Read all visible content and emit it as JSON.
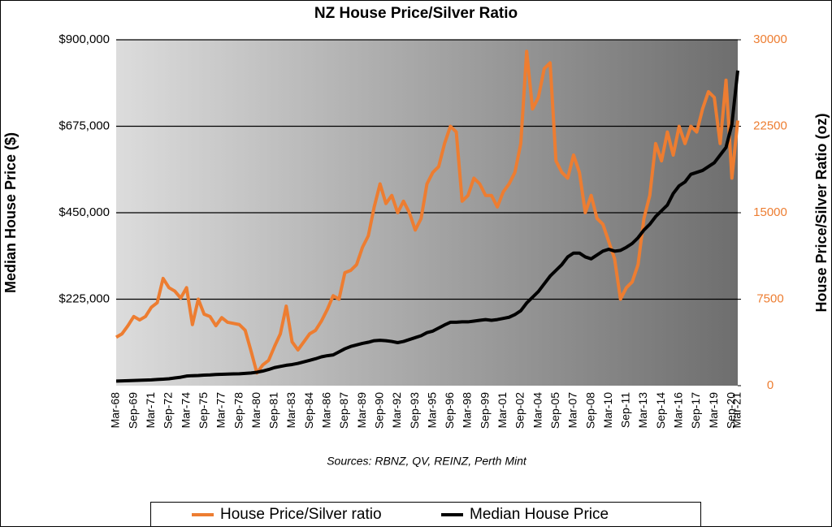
{
  "chart_data": {
    "type": "line",
    "title": "NZ House Price/Silver Ratio",
    "subtitle": "Sources: RBNZ, QV, REINZ, Perth Mint",
    "y_label": "Median House Price ($)",
    "y2_label": "House Price/Silver Ratio (oz)",
    "categories": [
      "Mar-68",
      null,
      null,
      "Sep-69",
      null,
      null,
      "Mar-71",
      null,
      null,
      "Sep-72",
      null,
      null,
      "Mar-74",
      null,
      null,
      "Sep-75",
      null,
      null,
      "Mar-77",
      null,
      null,
      "Sep-78",
      null,
      null,
      "Mar-80",
      null,
      null,
      "Sep-81",
      null,
      null,
      "Mar-83",
      null,
      null,
      "Sep-84",
      null,
      null,
      "Mar-86",
      null,
      null,
      "Sep-87",
      null,
      null,
      "Mar-89",
      null,
      null,
      "Sep-90",
      null,
      null,
      "Mar-92",
      null,
      null,
      "Sep-93",
      null,
      null,
      "Mar-95",
      null,
      null,
      "Sep-96",
      null,
      null,
      "Mar-98",
      null,
      null,
      "Sep-99",
      null,
      null,
      "Mar-01",
      null,
      null,
      "Sep-02",
      null,
      null,
      "Mar-04",
      null,
      null,
      "Sep-05",
      null,
      null,
      "Mar-07",
      null,
      null,
      "Sep-08",
      null,
      null,
      "Mar-10",
      null,
      null,
      "Sep-11",
      null,
      null,
      "Mar-13",
      null,
      null,
      "Sep-14",
      null,
      null,
      "Mar-16",
      null,
      null,
      "Sep-17",
      null,
      null,
      "Mar-19",
      null,
      null,
      "Sep-20",
      "Mar-21"
    ],
    "series": [
      {
        "name": "House Price/Silver ratio",
        "color": "#ed7d31",
        "axis": "y2",
        "values": [
          4200,
          4500,
          5200,
          6000,
          5700,
          6000,
          6800,
          7200,
          9300,
          8500,
          8200,
          7600,
          8500,
          5300,
          7500,
          6200,
          6000,
          5200,
          5900,
          5500,
          5400,
          5300,
          4800,
          3000,
          1100,
          1800,
          2200,
          3400,
          4500,
          6900,
          3800,
          3100,
          3800,
          4500,
          4800,
          5600,
          6600,
          7800,
          7500,
          9800,
          10000,
          10500,
          12000,
          13000,
          15500,
          17500,
          15800,
          16500,
          15000,
          16000,
          15000,
          13500,
          14500,
          17500,
          18500,
          19000,
          21000,
          22500,
          22000,
          16000,
          16500,
          18000,
          17500,
          16500,
          16500,
          15500,
          16800,
          17500,
          18500,
          21000,
          29000,
          24000,
          25000,
          27500,
          28000,
          19500,
          18500,
          18000,
          20000,
          18500,
          15000,
          16500,
          14500,
          14000,
          12500,
          11000,
          7500,
          8500,
          9000,
          10500,
          14500,
          16500,
          21000,
          19500,
          22000,
          20000,
          22500,
          21000,
          22500,
          22000,
          24000,
          25500,
          25000,
          21000,
          26500,
          18000,
          23000
        ]
      },
      {
        "name": "Median House Price",
        "color": "#000000",
        "values": [
          12000,
          12500,
          13000,
          13500,
          14000,
          14500,
          15000,
          16000,
          17000,
          18000,
          20000,
          22000,
          25000,
          26000,
          26500,
          27500,
          28000,
          29000,
          29500,
          30000,
          30500,
          31000,
          32000,
          33000,
          35000,
          38000,
          42000,
          47000,
          50000,
          53000,
          55000,
          58000,
          62000,
          66000,
          70000,
          75000,
          78000,
          80000,
          88000,
          96000,
          102000,
          106000,
          110000,
          113000,
          117000,
          118000,
          117000,
          115000,
          112000,
          115000,
          120000,
          125000,
          130000,
          138000,
          142000,
          150000,
          158000,
          165000,
          165000,
          166000,
          166000,
          168000,
          170000,
          172000,
          170000,
          172000,
          175000,
          178000,
          185000,
          195000,
          215000,
          230000,
          245000,
          265000,
          285000,
          300000,
          315000,
          335000,
          345000,
          345000,
          335000,
          330000,
          340000,
          350000,
          355000,
          350000,
          352000,
          360000,
          370000,
          385000,
          405000,
          420000,
          440000,
          455000,
          470000,
          500000,
          520000,
          530000,
          550000,
          555000,
          560000,
          570000,
          580000,
          600000,
          620000,
          680000,
          820000
        ]
      }
    ],
    "ylim": [
      0,
      900000
    ],
    "yticks": [
      {
        "value": 225000,
        "label": "$225,000"
      },
      {
        "value": 450000,
        "label": "$450,000"
      },
      {
        "value": 675000,
        "label": "$675,000"
      },
      {
        "value": 900000,
        "label": "$900,000"
      }
    ],
    "y2lim": [
      0,
      30000
    ],
    "y2ticks": [
      0,
      7500,
      15000,
      22500,
      30000
    ],
    "grid": true,
    "legend": "bottom"
  }
}
